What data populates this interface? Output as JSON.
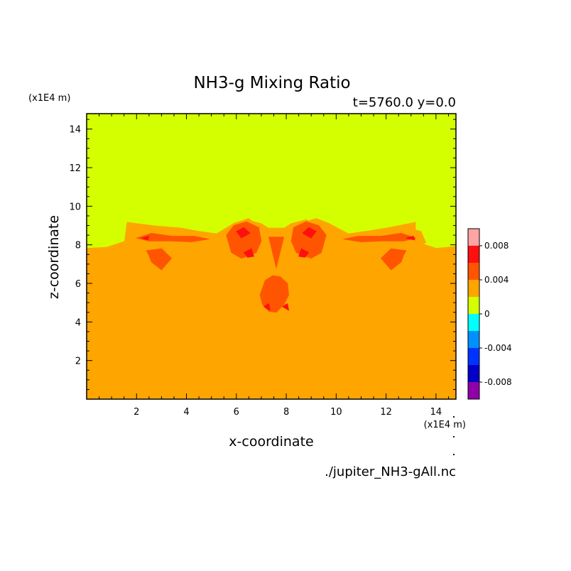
{
  "chart_data": {
    "type": "heatmap",
    "title": "NH3-g Mixing Ratio",
    "subtitle": "t=5760.0 y=0.0",
    "xlabel": "x-coordinate",
    "ylabel": "z-coordinate",
    "x_unit": "(x1E4 m)",
    "y_unit": "(x1E4 m)",
    "xlim": [
      0,
      14.8
    ],
    "ylim": [
      0,
      14.8
    ],
    "x_ticks": [
      2,
      4,
      6,
      8,
      10,
      12,
      14
    ],
    "y_ticks": [
      2,
      4,
      6,
      8,
      10,
      12,
      14
    ],
    "grid": false,
    "colorbar": {
      "position": "right",
      "min": -0.01,
      "max": 0.01,
      "levels": [
        {
          "from": -0.01,
          "to": -0.008,
          "color": "#8f00a8"
        },
        {
          "from": -0.008,
          "to": -0.006,
          "color": "#0000c6"
        },
        {
          "from": -0.006,
          "to": -0.004,
          "color": "#0033ff"
        },
        {
          "from": -0.004,
          "to": -0.002,
          "color": "#0090ff"
        },
        {
          "from": -0.002,
          "to": 0.0,
          "color": "#00ffff"
        },
        {
          "from": 0.0,
          "to": 0.002,
          "color": "#d4ff00"
        },
        {
          "from": 0.002,
          "to": 0.004,
          "color": "#ffa500"
        },
        {
          "from": 0.004,
          "to": 0.006,
          "color": "#ff5500"
        },
        {
          "from": 0.006,
          "to": 0.008,
          "color": "#ff1010"
        },
        {
          "from": 0.008,
          "to": 0.01,
          "color": "#ffa3a3"
        }
      ],
      "tick_values": [
        0.008,
        0.004,
        0,
        -0.004,
        -0.008
      ],
      "tick_labels": [
        "0.008",
        "0.004",
        "0",
        "-0.004",
        "-0.008"
      ]
    },
    "background_fill_color": "#ffa500",
    "regions": [
      {
        "level": "0.000-0.002",
        "color": "#d4ff00",
        "points": [
          [
            0,
            14.8
          ],
          [
            14.8,
            14.8
          ],
          [
            14.8,
            7.95
          ],
          [
            14,
            7.85
          ],
          [
            13.2,
            8.2
          ],
          [
            13.2,
            9.2
          ],
          [
            12,
            8.9
          ],
          [
            11.3,
            8.75
          ],
          [
            10.5,
            8.6
          ],
          [
            9.7,
            9.15
          ],
          [
            9.2,
            9.4
          ],
          [
            8.6,
            9.15
          ],
          [
            8.2,
            8.9
          ],
          [
            7.6,
            8.9
          ],
          [
            7,
            8.9
          ],
          [
            6.5,
            9.4
          ],
          [
            5.9,
            9.15
          ],
          [
            5.2,
            8.6
          ],
          [
            4.4,
            8.75
          ],
          [
            3.8,
            8.9
          ],
          [
            2.8,
            9.0
          ],
          [
            1.6,
            9.2
          ],
          [
            1.5,
            8.2
          ],
          [
            0.8,
            7.9
          ],
          [
            0,
            7.85
          ]
        ]
      },
      {
        "level": "0.002-0.004",
        "color": "#ffa500",
        "points": [
          [
            1.5,
            8.1
          ],
          [
            1.8,
            8.7
          ],
          [
            2.5,
            8.9
          ],
          [
            3.2,
            8.65
          ],
          [
            4.2,
            8.65
          ],
          [
            4.8,
            8.2
          ],
          [
            5.6,
            8.4
          ],
          [
            6.0,
            9.0
          ],
          [
            6.4,
            9.3
          ],
          [
            7.0,
            9.1
          ],
          [
            7.6,
            8.6
          ],
          [
            8.2,
            9.1
          ],
          [
            8.8,
            9.3
          ],
          [
            9.3,
            9.0
          ],
          [
            9.8,
            8.4
          ],
          [
            10.6,
            8.2
          ],
          [
            11.2,
            8.65
          ],
          [
            12.1,
            8.65
          ],
          [
            12.8,
            8.9
          ],
          [
            13.4,
            8.7
          ],
          [
            13.6,
            8.1
          ],
          [
            11.8,
            7.75
          ],
          [
            11.0,
            7.9
          ],
          [
            9.5,
            8.0
          ],
          [
            5.8,
            8.0
          ],
          [
            4.2,
            7.9
          ],
          [
            3.3,
            7.75
          ]
        ]
      },
      {
        "level": "0.004-0.006",
        "color": "#ff5500",
        "points": [
          [
            2.0,
            8.35
          ],
          [
            2.6,
            8.6
          ],
          [
            3.4,
            8.45
          ],
          [
            4.3,
            8.45
          ],
          [
            4.9,
            8.3
          ],
          [
            4.2,
            8.15
          ],
          [
            3.4,
            8.2
          ],
          [
            2.5,
            8.2
          ]
        ]
      },
      {
        "level": "0.004-0.006",
        "color": "#ff5500",
        "points": [
          [
            10.3,
            8.3
          ],
          [
            10.9,
            8.45
          ],
          [
            11.8,
            8.45
          ],
          [
            12.6,
            8.6
          ],
          [
            13.2,
            8.35
          ],
          [
            12.7,
            8.2
          ],
          [
            11.8,
            8.2
          ],
          [
            11.0,
            8.15
          ]
        ]
      },
      {
        "level": "0.004-0.006",
        "color": "#ff5500",
        "points": [
          [
            5.6,
            8.5
          ],
          [
            5.9,
            9.0
          ],
          [
            6.4,
            9.2
          ],
          [
            6.9,
            8.9
          ],
          [
            7.0,
            8.2
          ],
          [
            6.8,
            7.6
          ],
          [
            6.2,
            7.3
          ],
          [
            5.8,
            7.6
          ]
        ]
      },
      {
        "level": "0.004-0.006",
        "color": "#ff5500",
        "points": [
          [
            9.6,
            8.5
          ],
          [
            9.3,
            9.0
          ],
          [
            8.8,
            9.2
          ],
          [
            8.3,
            8.9
          ],
          [
            8.2,
            8.2
          ],
          [
            8.4,
            7.6
          ],
          [
            9.0,
            7.3
          ],
          [
            9.4,
            7.6
          ]
        ]
      },
      {
        "level": "0.004-0.006",
        "color": "#ff5500",
        "points": [
          [
            7.3,
            8.4
          ],
          [
            7.6,
            6.8
          ],
          [
            7.9,
            8.4
          ]
        ]
      },
      {
        "level": "0.004-0.006",
        "color": "#ff5500",
        "points": [
          [
            7.15,
            6.15
          ],
          [
            7.45,
            6.4
          ],
          [
            7.75,
            6.35
          ],
          [
            8.05,
            6.0
          ],
          [
            8.1,
            5.4
          ],
          [
            7.9,
            4.9
          ],
          [
            7.6,
            4.5
          ],
          [
            7.3,
            4.55
          ],
          [
            7.05,
            4.9
          ],
          [
            6.95,
            5.4
          ]
        ]
      },
      {
        "level": "0.004-0.006",
        "color": "#ff5500",
        "points": [
          [
            2.4,
            7.7
          ],
          [
            3.0,
            7.8
          ],
          [
            3.4,
            7.3
          ],
          [
            3.0,
            6.7
          ],
          [
            2.6,
            7.1
          ],
          [
            2.5,
            7.45
          ]
        ]
      },
      {
        "level": "0.004-0.006",
        "color": "#ff5500",
        "points": [
          [
            12.8,
            7.7
          ],
          [
            12.2,
            7.8
          ],
          [
            11.8,
            7.3
          ],
          [
            12.2,
            6.7
          ],
          [
            12.6,
            7.1
          ],
          [
            12.7,
            7.45
          ]
        ]
      },
      {
        "level": "0.006-0.008",
        "color": "#ff1010",
        "points": [
          [
            6.0,
            8.7
          ],
          [
            6.3,
            8.9
          ],
          [
            6.55,
            8.6
          ],
          [
            6.2,
            8.35
          ]
        ]
      },
      {
        "level": "0.006-0.008",
        "color": "#ff1010",
        "points": [
          [
            6.3,
            7.6
          ],
          [
            6.6,
            7.8
          ],
          [
            6.7,
            7.4
          ],
          [
            6.45,
            7.35
          ]
        ]
      },
      {
        "level": "0.006-0.008",
        "color": "#ff1010",
        "points": [
          [
            9.2,
            8.7
          ],
          [
            8.9,
            8.9
          ],
          [
            8.65,
            8.6
          ],
          [
            9.0,
            8.35
          ]
        ]
      },
      {
        "level": "0.006-0.008",
        "color": "#ff1010",
        "points": [
          [
            8.9,
            7.6
          ],
          [
            8.6,
            7.8
          ],
          [
            8.5,
            7.4
          ],
          [
            8.75,
            7.35
          ]
        ]
      },
      {
        "level": "0.006-0.008",
        "color": "#ff1010",
        "points": [
          [
            7.1,
            4.8
          ],
          [
            7.3,
            4.95
          ],
          [
            7.35,
            4.6
          ]
        ]
      },
      {
        "level": "0.006-0.008",
        "color": "#ff1010",
        "points": [
          [
            7.85,
            4.8
          ],
          [
            8.05,
            4.95
          ],
          [
            8.1,
            4.6
          ]
        ]
      },
      {
        "level": "0.006-0.008",
        "color": "#ff1010",
        "points": [
          [
            2.2,
            8.35
          ],
          [
            2.5,
            8.45
          ],
          [
            2.45,
            8.25
          ]
        ]
      },
      {
        "level": "0.006-0.008",
        "color": "#ff1010",
        "points": [
          [
            12.8,
            8.35
          ],
          [
            13.1,
            8.45
          ],
          [
            13.15,
            8.25
          ]
        ]
      }
    ],
    "annotations": [
      "./jupiter_NH3-gAll.nc"
    ]
  }
}
